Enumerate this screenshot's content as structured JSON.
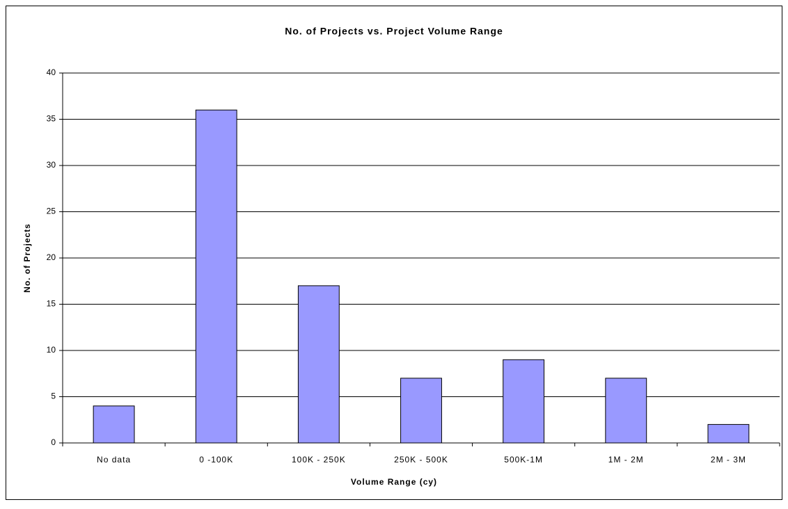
{
  "chart_data": {
    "type": "bar",
    "title": "No. of Projects vs. Project Volume Range",
    "x_label": "Volume Range (cy)",
    "y_label": "No. of Projects",
    "categories": [
      "No data",
      "0 -100K",
      "100K - 250K",
      "250K - 500K",
      "500K-1M",
      "1M - 2M",
      "2M - 3M"
    ],
    "values": [
      4,
      36,
      17,
      7,
      9,
      7,
      2
    ],
    "color": "#9999ff",
    "ylim": [
      0,
      40
    ],
    "yticks": [
      0,
      5,
      10,
      15,
      20,
      25,
      30,
      35,
      40
    ],
    "grid": true
  }
}
